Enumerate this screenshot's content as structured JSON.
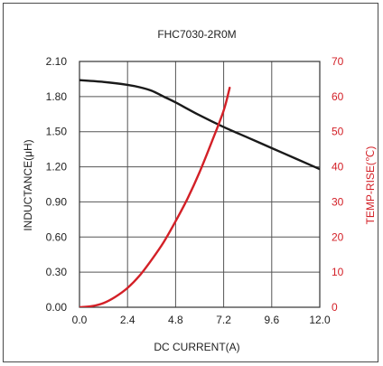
{
  "chart_data": {
    "type": "line",
    "title": "FHC7030-2R0M",
    "xlabel": "DC CURRENT(A)",
    "ylabel": "INDUCTANCE(μH)",
    "y2label": "TEMP-RISE(℃)",
    "xlim": [
      0,
      12
    ],
    "ylim": [
      0,
      2.1
    ],
    "y2lim": [
      0,
      70
    ],
    "x_ticks": [
      "0.0",
      "2.4",
      "4.8",
      "7.2",
      "9.6",
      "12.0"
    ],
    "y_ticks": [
      "0.00",
      "0.30",
      "0.60",
      "0.90",
      "1.20",
      "1.50",
      "1.80",
      "2.10"
    ],
    "y2_ticks": [
      "0",
      "10",
      "20",
      "30",
      "40",
      "50",
      "60",
      "70"
    ],
    "grid": true,
    "colors": {
      "inductance": "#1a1a1a",
      "temp_rise": "#d32027",
      "grid": "#555555"
    },
    "series": [
      {
        "axis": "left",
        "x": [
          0,
          1.2,
          2.4,
          3.0,
          3.6,
          4.2,
          4.8,
          6.0,
          7.2,
          8.4,
          9.6,
          10.8,
          12.0
        ],
        "values": [
          1.94,
          1.925,
          1.9,
          1.88,
          1.85,
          1.8,
          1.75,
          1.64,
          1.54,
          1.45,
          1.36,
          1.27,
          1.18
        ]
      },
      {
        "axis": "right",
        "x": [
          0,
          0.6,
          1.2,
          1.8,
          2.4,
          3.0,
          3.6,
          4.2,
          4.8,
          5.4,
          6.0,
          6.6,
          7.2,
          7.5
        ],
        "values": [
          0,
          0.3,
          1.2,
          3.0,
          5.5,
          9.0,
          13.5,
          18.5,
          24.5,
          31.0,
          38.5,
          47.0,
          56.0,
          62.5
        ]
      }
    ]
  }
}
